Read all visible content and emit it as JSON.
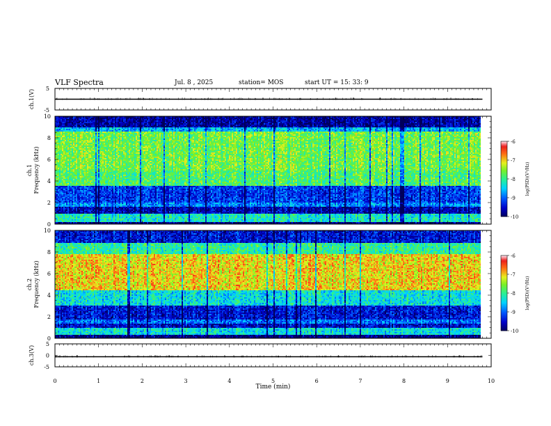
{
  "header": {
    "title": "VLF Spectra",
    "date": "Jul. 8 , 2025",
    "station": "station= MOS",
    "start": "start UT = 15: 33: 9"
  },
  "chart_data": [
    {
      "type": "line",
      "panel": "ch1-waveform",
      "ylabel": "ch.1(V)",
      "ylim": [
        -5,
        5
      ],
      "yticks": [
        "5",
        "-5"
      ],
      "series": [
        {
          "values": [
            0,
            0
          ]
        }
      ],
      "x": [
        0,
        9.8
      ]
    },
    {
      "type": "heatmap",
      "panel": "ch1-spectrogram",
      "ylabel_top": "ch.1",
      "ylabel": "Frequency (kHz)",
      "ylim": [
        0,
        10
      ],
      "yticks": [
        "0",
        "2",
        "4",
        "6",
        "8",
        "10"
      ],
      "xlim": [
        0,
        9.8
      ],
      "colorbar": {
        "label": "log(PSD)(V²/Hz)",
        "range": [
          -10,
          -6
        ],
        "ticks": [
          "-6",
          "-7",
          "-8",
          "-9",
          "-10"
        ]
      },
      "bands": [
        {
          "f": [
            0,
            0.2
          ],
          "level": -9.8
        },
        {
          "f": [
            0.2,
            1.0
          ],
          "level": -8.2
        },
        {
          "f": [
            1.0,
            1.6
          ],
          "level": -9.6
        },
        {
          "f": [
            1.6,
            2.0
          ],
          "level": -8.8
        },
        {
          "f": [
            2.0,
            3.5
          ],
          "level": -9.2
        },
        {
          "f": [
            3.5,
            5.0
          ],
          "level": -7.8
        },
        {
          "f": [
            5.0,
            8.6
          ],
          "level": -7.6
        },
        {
          "f": [
            8.6,
            9.0
          ],
          "level": -8.6
        },
        {
          "f": [
            9.0,
            10.0
          ],
          "level": -9.7
        }
      ]
    },
    {
      "type": "heatmap",
      "panel": "ch2-spectrogram",
      "ylabel_top": "ch.2",
      "ylabel": "Frequency (kHz)",
      "ylim": [
        0,
        10
      ],
      "yticks": [
        "0",
        "2",
        "4",
        "6",
        "8",
        "10"
      ],
      "xlim": [
        0,
        9.8
      ],
      "colorbar": {
        "label": "log(PSD)(V²/Hz)",
        "range": [
          -10,
          -6
        ],
        "ticks": [
          "-6",
          "-7",
          "-8",
          "-9",
          "-10"
        ]
      },
      "bands": [
        {
          "f": [
            0,
            0.3
          ],
          "level": -9.8
        },
        {
          "f": [
            0.3,
            1.0
          ],
          "level": -8.3
        },
        {
          "f": [
            1.0,
            1.4
          ],
          "level": -9.5
        },
        {
          "f": [
            1.4,
            1.8
          ],
          "level": -8.9
        },
        {
          "f": [
            1.8,
            3.0
          ],
          "level": -9.4
        },
        {
          "f": [
            3.0,
            4.5
          ],
          "level": -8.3
        },
        {
          "f": [
            4.5,
            7.8
          ],
          "level": -7.0
        },
        {
          "f": [
            7.8,
            8.8
          ],
          "level": -8.0
        },
        {
          "f": [
            8.8,
            10.0
          ],
          "level": -9.4
        }
      ]
    },
    {
      "type": "line",
      "panel": "ch3-waveform",
      "ylabel": "ch.3(V)",
      "ylim": [
        -5,
        5
      ],
      "yticks": [
        "5",
        "0",
        "-5"
      ],
      "series": [
        {
          "values": [
            0,
            0
          ]
        }
      ],
      "x": [
        0,
        9.8
      ]
    }
  ],
  "xaxis": {
    "label": "Time (min)",
    "range": [
      0,
      10
    ],
    "ticks": [
      "0",
      "1",
      "2",
      "3",
      "4",
      "5",
      "6",
      "7",
      "8",
      "9",
      "10"
    ]
  }
}
